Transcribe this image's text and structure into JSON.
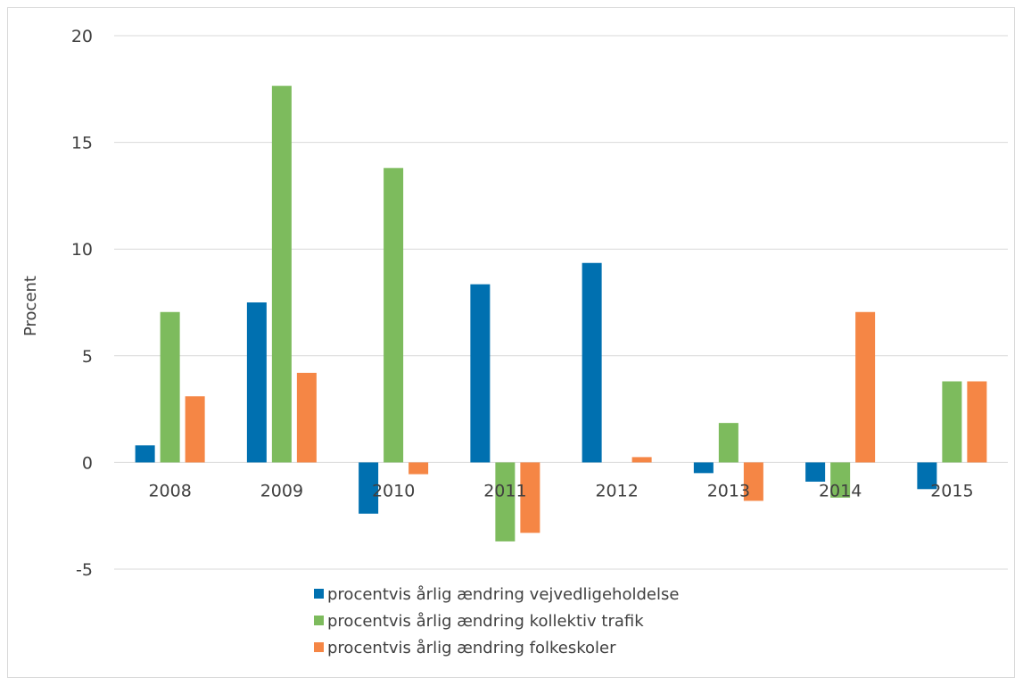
{
  "chart_data": {
    "type": "bar",
    "title": "",
    "xlabel": "",
    "ylabel": "Procent",
    "ylim": [
      -5,
      20
    ],
    "yticks": [
      -5,
      0,
      5,
      10,
      15,
      20
    ],
    "grid": true,
    "legend_position": "bottom",
    "categories": [
      "2008",
      "2009",
      "2010",
      "2011",
      "2012",
      "2013",
      "2014",
      "2015"
    ],
    "series": [
      {
        "name": "procentvis årlig ændring vejvedligeholdelse",
        "color": "#0070b0",
        "values": [
          0.8,
          7.5,
          -2.4,
          8.35,
          9.35,
          -0.5,
          -0.9,
          -1.25
        ]
      },
      {
        "name": "procentvis årlig ændring kollektiv trafik",
        "color": "#7dbb5d",
        "values": [
          7.05,
          17.65,
          13.8,
          -3.7,
          0,
          1.85,
          -1.65,
          3.8
        ]
      },
      {
        "name": "procentvis årlig ændring folkeskoler",
        "color": "#f58645",
        "values": [
          3.1,
          4.2,
          -0.55,
          -3.3,
          0.25,
          -1.8,
          7.05,
          3.8
        ]
      }
    ]
  }
}
